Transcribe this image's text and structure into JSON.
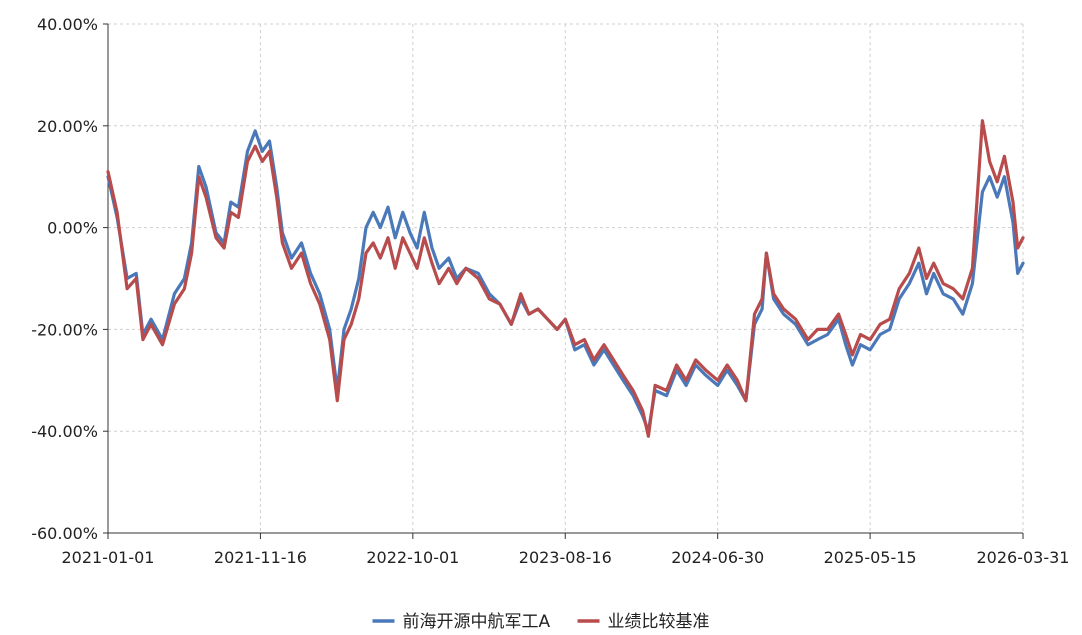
{
  "chart_data": {
    "type": "line",
    "title": "",
    "xlabel": "",
    "ylabel": "",
    "y_unit": "%",
    "ylim": [
      -60,
      40
    ],
    "y_ticks": [
      40,
      20,
      0,
      -20,
      -40,
      -60
    ],
    "y_tick_labels": [
      "40.00%",
      "20.00%",
      "0.00%",
      "-20.00%",
      "-40.00%",
      "-60.00%"
    ],
    "xlim": [
      "2021-01-01",
      "2026-03-31"
    ],
    "x_ticks": [
      "2021-01-01",
      "2021-11-16",
      "2022-10-01",
      "2023-08-16",
      "2024-06-30",
      "2025-05-15",
      "2026-03-31"
    ],
    "grid": true,
    "legend_position": "bottom-center",
    "series": [
      {
        "name": "前海开源中航军工A",
        "color": "#4a78b8",
        "points": [
          [
            "2021-01-01",
            10
          ],
          [
            "2021-01-20",
            2
          ],
          [
            "2021-02-10",
            -10
          ],
          [
            "2021-03-01",
            -9
          ],
          [
            "2021-03-15",
            -21
          ],
          [
            "2021-04-01",
            -18
          ],
          [
            "2021-04-25",
            -22
          ],
          [
            "2021-05-20",
            -13
          ],
          [
            "2021-06-10",
            -10
          ],
          [
            "2021-06-25",
            -3
          ],
          [
            "2021-07-10",
            12
          ],
          [
            "2021-07-25",
            8
          ],
          [
            "2021-08-15",
            -1
          ],
          [
            "2021-09-01",
            -3
          ],
          [
            "2021-09-15",
            5
          ],
          [
            "2021-10-01",
            4
          ],
          [
            "2021-10-20",
            15
          ],
          [
            "2021-11-05",
            19
          ],
          [
            "2021-11-20",
            15
          ],
          [
            "2021-12-05",
            17
          ],
          [
            "2021-12-20",
            8
          ],
          [
            "2022-01-01",
            -1
          ],
          [
            "2022-01-20",
            -6
          ],
          [
            "2022-02-10",
            -3
          ],
          [
            "2022-03-01",
            -9
          ],
          [
            "2022-03-20",
            -13
          ],
          [
            "2022-04-10",
            -20
          ],
          [
            "2022-04-26",
            -32
          ],
          [
            "2022-05-10",
            -20
          ],
          [
            "2022-05-25",
            -16
          ],
          [
            "2022-06-10",
            -10
          ],
          [
            "2022-06-25",
            0
          ],
          [
            "2022-07-10",
            3
          ],
          [
            "2022-07-25",
            0
          ],
          [
            "2022-08-10",
            4
          ],
          [
            "2022-08-25",
            -2
          ],
          [
            "2022-09-10",
            3
          ],
          [
            "2022-09-25",
            -1
          ],
          [
            "2022-10-10",
            -4
          ],
          [
            "2022-10-25",
            3
          ],
          [
            "2022-11-10",
            -4
          ],
          [
            "2022-11-25",
            -8
          ],
          [
            "2022-12-15",
            -6
          ],
          [
            "2023-01-01",
            -10
          ],
          [
            "2023-01-20",
            -8
          ],
          [
            "2023-02-15",
            -9
          ],
          [
            "2023-03-10",
            -13
          ],
          [
            "2023-04-01",
            -15
          ],
          [
            "2023-04-25",
            -19
          ],
          [
            "2023-05-15",
            -14
          ],
          [
            "2023-06-01",
            -17
          ],
          [
            "2023-06-20",
            -16
          ],
          [
            "2023-07-10",
            -18
          ],
          [
            "2023-07-30",
            -20
          ],
          [
            "2023-08-16",
            -18
          ],
          [
            "2023-09-05",
            -24
          ],
          [
            "2023-09-25",
            -23
          ],
          [
            "2023-10-15",
            -27
          ],
          [
            "2023-11-05",
            -24
          ],
          [
            "2023-11-25",
            -27
          ],
          [
            "2023-12-15",
            -30
          ],
          [
            "2024-01-05",
            -33
          ],
          [
            "2024-01-25",
            -37
          ],
          [
            "2024-02-06",
            -40
          ],
          [
            "2024-02-20",
            -32
          ],
          [
            "2024-03-15",
            -33
          ],
          [
            "2024-04-05",
            -28
          ],
          [
            "2024-04-25",
            -31
          ],
          [
            "2024-05-15",
            -27
          ],
          [
            "2024-06-05",
            -29
          ],
          [
            "2024-06-30",
            -31
          ],
          [
            "2024-07-20",
            -28
          ],
          [
            "2024-08-10",
            -31
          ],
          [
            "2024-08-28",
            -34
          ],
          [
            "2024-09-15",
            -19
          ],
          [
            "2024-10-01",
            -16
          ],
          [
            "2024-10-10",
            -5
          ],
          [
            "2024-10-25",
            -14
          ],
          [
            "2024-11-15",
            -17
          ],
          [
            "2024-12-10",
            -19
          ],
          [
            "2025-01-05",
            -23
          ],
          [
            "2025-01-25",
            -22
          ],
          [
            "2025-02-15",
            -21
          ],
          [
            "2025-03-10",
            -18
          ],
          [
            "2025-03-25",
            -23
          ],
          [
            "2025-04-08",
            -27
          ],
          [
            "2025-04-25",
            -23
          ],
          [
            "2025-05-15",
            -24
          ],
          [
            "2025-06-05",
            -21
          ],
          [
            "2025-06-25",
            -20
          ],
          [
            "2025-07-15",
            -14
          ],
          [
            "2025-08-05",
            -11
          ],
          [
            "2025-08-25",
            -7
          ],
          [
            "2025-09-10",
            -13
          ],
          [
            "2025-09-25",
            -9
          ],
          [
            "2025-10-15",
            -13
          ],
          [
            "2025-11-05",
            -14
          ],
          [
            "2025-11-25",
            -17
          ],
          [
            "2025-12-15",
            -11
          ],
          [
            "2026-01-05",
            7
          ],
          [
            "2026-01-20",
            10
          ],
          [
            "2026-02-05",
            6
          ],
          [
            "2026-02-20",
            10
          ],
          [
            "2026-03-10",
            1
          ],
          [
            "2026-03-20",
            -9
          ],
          [
            "2026-03-31",
            -7
          ]
        ]
      },
      {
        "name": "业绩比较基准",
        "color": "#b84c4c",
        "points": [
          [
            "2021-01-01",
            11
          ],
          [
            "2021-01-20",
            3
          ],
          [
            "2021-02-10",
            -12
          ],
          [
            "2021-03-01",
            -10
          ],
          [
            "2021-03-15",
            -22
          ],
          [
            "2021-04-01",
            -19
          ],
          [
            "2021-04-25",
            -23
          ],
          [
            "2021-05-20",
            -15
          ],
          [
            "2021-06-10",
            -12
          ],
          [
            "2021-06-25",
            -5
          ],
          [
            "2021-07-10",
            10
          ],
          [
            "2021-07-25",
            6
          ],
          [
            "2021-08-15",
            -2
          ],
          [
            "2021-09-01",
            -4
          ],
          [
            "2021-09-15",
            3
          ],
          [
            "2021-10-01",
            2
          ],
          [
            "2021-10-20",
            13
          ],
          [
            "2021-11-05",
            16
          ],
          [
            "2021-11-20",
            13
          ],
          [
            "2021-12-05",
            15
          ],
          [
            "2021-12-20",
            6
          ],
          [
            "2022-01-01",
            -3
          ],
          [
            "2022-01-20",
            -8
          ],
          [
            "2022-02-10",
            -5
          ],
          [
            "2022-03-01",
            -11
          ],
          [
            "2022-03-20",
            -15
          ],
          [
            "2022-04-10",
            -22
          ],
          [
            "2022-04-26",
            -34
          ],
          [
            "2022-05-10",
            -22
          ],
          [
            "2022-05-25",
            -19
          ],
          [
            "2022-06-10",
            -14
          ],
          [
            "2022-06-25",
            -5
          ],
          [
            "2022-07-10",
            -3
          ],
          [
            "2022-07-25",
            -6
          ],
          [
            "2022-08-10",
            -2
          ],
          [
            "2022-08-25",
            -8
          ],
          [
            "2022-09-10",
            -2
          ],
          [
            "2022-09-25",
            -5
          ],
          [
            "2022-10-10",
            -8
          ],
          [
            "2022-10-25",
            -2
          ],
          [
            "2022-11-10",
            -7
          ],
          [
            "2022-11-25",
            -11
          ],
          [
            "2022-12-15",
            -8
          ],
          [
            "2023-01-01",
            -11
          ],
          [
            "2023-01-20",
            -8
          ],
          [
            "2023-02-15",
            -10
          ],
          [
            "2023-03-10",
            -14
          ],
          [
            "2023-04-01",
            -15
          ],
          [
            "2023-04-25",
            -19
          ],
          [
            "2023-05-15",
            -13
          ],
          [
            "2023-06-01",
            -17
          ],
          [
            "2023-06-20",
            -16
          ],
          [
            "2023-07-10",
            -18
          ],
          [
            "2023-07-30",
            -20
          ],
          [
            "2023-08-16",
            -18
          ],
          [
            "2023-09-05",
            -23
          ],
          [
            "2023-09-25",
            -22
          ],
          [
            "2023-10-15",
            -26
          ],
          [
            "2023-11-05",
            -23
          ],
          [
            "2023-11-25",
            -26
          ],
          [
            "2023-12-15",
            -29
          ],
          [
            "2024-01-05",
            -32
          ],
          [
            "2024-01-25",
            -36
          ],
          [
            "2024-02-06",
            -41
          ],
          [
            "2024-02-20",
            -31
          ],
          [
            "2024-03-15",
            -32
          ],
          [
            "2024-04-05",
            -27
          ],
          [
            "2024-04-25",
            -30
          ],
          [
            "2024-05-15",
            -26
          ],
          [
            "2024-06-05",
            -28
          ],
          [
            "2024-06-30",
            -30
          ],
          [
            "2024-07-20",
            -27
          ],
          [
            "2024-08-10",
            -30
          ],
          [
            "2024-08-28",
            -34
          ],
          [
            "2024-09-15",
            -17
          ],
          [
            "2024-10-01",
            -14
          ],
          [
            "2024-10-10",
            -5
          ],
          [
            "2024-10-25",
            -13
          ],
          [
            "2024-11-15",
            -16
          ],
          [
            "2024-12-10",
            -18
          ],
          [
            "2025-01-05",
            -22
          ],
          [
            "2025-01-25",
            -20
          ],
          [
            "2025-02-15",
            -20
          ],
          [
            "2025-03-10",
            -17
          ],
          [
            "2025-03-25",
            -21
          ],
          [
            "2025-04-08",
            -25
          ],
          [
            "2025-04-25",
            -21
          ],
          [
            "2025-05-15",
            -22
          ],
          [
            "2025-06-05",
            -19
          ],
          [
            "2025-06-25",
            -18
          ],
          [
            "2025-07-15",
            -12
          ],
          [
            "2025-08-05",
            -9
          ],
          [
            "2025-08-25",
            -4
          ],
          [
            "2025-09-10",
            -10
          ],
          [
            "2025-09-25",
            -7
          ],
          [
            "2025-10-15",
            -11
          ],
          [
            "2025-11-05",
            -12
          ],
          [
            "2025-11-25",
            -14
          ],
          [
            "2025-12-15",
            -8
          ],
          [
            "2026-01-05",
            21
          ],
          [
            "2026-01-20",
            13
          ],
          [
            "2026-02-05",
            9
          ],
          [
            "2026-02-20",
            14
          ],
          [
            "2026-03-10",
            5
          ],
          [
            "2026-03-20",
            -4
          ],
          [
            "2026-03-31",
            -2
          ]
        ]
      }
    ]
  }
}
